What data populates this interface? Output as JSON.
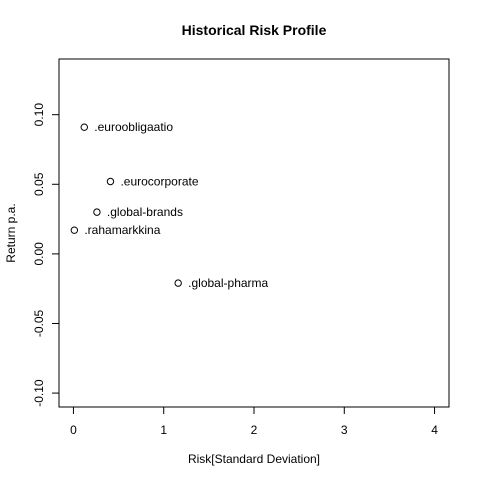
{
  "chart_data": {
    "type": "scatter",
    "title": "Historical Risk Profile",
    "xlabel": "Risk[Standard Deviation]",
    "ylabel": "Return p.a.",
    "xlim": [
      -0.16,
      4.16
    ],
    "ylim": [
      -0.11,
      0.14
    ],
    "x_ticks": [
      0,
      1,
      2,
      3,
      4
    ],
    "y_ticks": [
      -0.1,
      -0.05,
      0.0,
      0.05,
      0.1
    ],
    "x_tick_labels": [
      "0",
      "1",
      "2",
      "3",
      "4"
    ],
    "y_tick_labels": [
      "-0.10",
      "-0.05",
      "0.00",
      "0.05",
      "0.10"
    ],
    "grid": false,
    "points": [
      {
        "label": ".euroobligaatio",
        "x": 0.12,
        "y": 0.091
      },
      {
        "label": ".eurocorporate",
        "x": 0.41,
        "y": 0.052
      },
      {
        "label": ".global-brands",
        "x": 0.26,
        "y": 0.03
      },
      {
        "label": ".rahamarkkina",
        "x": 0.01,
        "y": 0.017
      },
      {
        "label": ".global-pharma",
        "x": 1.16,
        "y": -0.021
      }
    ]
  }
}
